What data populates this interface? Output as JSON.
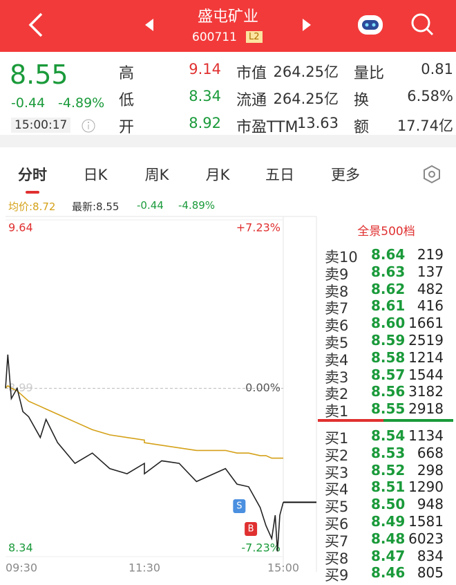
{
  "header": {
    "title": "盛屯矿业",
    "code": "600711",
    "badge": "L2"
  },
  "quote": {
    "price": "8.55",
    "change": "-0.44",
    "change_pct": "-4.89%",
    "time": "15:00:17"
  },
  "stats": [
    [
      "高",
      "9.14",
      "市值",
      "264.25亿",
      "量比",
      "0.81"
    ],
    [
      "低",
      "8.34",
      "流通",
      "264.25亿",
      "换",
      "6.58%"
    ],
    [
      "开",
      "8.92",
      "市盈TTM",
      "13.63",
      "额",
      "17.74亿"
    ]
  ],
  "tabs": [
    "分时",
    "日K",
    "周K",
    "月K",
    "五日",
    "更多"
  ],
  "summary": {
    "avg": "均价:8.72",
    "latest": "最新:8.55",
    "change": "-0.44",
    "change_pct": "-4.89%"
  },
  "chart": {
    "type": "line",
    "x": [
      "09:30",
      "09:32",
      "09:35",
      "09:40",
      "09:45",
      "09:50",
      "10:00",
      "10:05",
      "10:15",
      "10:30",
      "10:45",
      "11:00",
      "11:15",
      "11:30",
      "13:00",
      "13:15",
      "13:30",
      "13:45",
      "14:00",
      "14:10",
      "14:20",
      "14:30",
      "14:40",
      "14:45",
      "14:50",
      "14:53",
      "14:55",
      "14:57",
      "15:00"
    ],
    "series": [
      {
        "color": "#222222",
        "values": [
          8.99,
          9.12,
          8.95,
          8.99,
          8.9,
          8.88,
          8.8,
          8.87,
          8.78,
          8.7,
          8.74,
          8.68,
          8.66,
          8.7,
          8.66,
          8.71,
          8.7,
          8.63,
          8.66,
          8.68,
          8.62,
          8.61,
          8.53,
          8.46,
          8.41,
          8.5,
          8.36,
          8.5,
          8.55
        ]
      },
      {
        "color": "#d4a017",
        "values": [
          8.99,
          9.0,
          8.99,
          8.98,
          8.96,
          8.94,
          8.92,
          8.91,
          8.89,
          8.86,
          8.83,
          8.81,
          8.8,
          8.79,
          8.78,
          8.77,
          8.76,
          8.75,
          8.75,
          8.75,
          8.74,
          8.74,
          8.73,
          8.73,
          8.72,
          8.72,
          8.72,
          8.72,
          8.72
        ]
      }
    ],
    "ylim": [
      8.34,
      9.64
    ],
    "yticks": [
      8.34,
      8.99,
      9.64
    ],
    "pct_ticks": [
      {
        "value": 9.64,
        "label": "+7.23%"
      },
      {
        "value": 8.99,
        "label": "0.00%"
      },
      {
        "value": 8.34,
        "label": "-7.23%"
      }
    ],
    "xticks": [
      "09:30",
      "11:30",
      "15:00"
    ],
    "signals": [
      {
        "label": "S",
        "time": "14:22"
      },
      {
        "label": "B",
        "time": "14:32"
      }
    ]
  },
  "order_book": {
    "title": "全景500档",
    "asks": [
      [
        "卖10",
        "8.64",
        "219"
      ],
      [
        "卖9",
        "8.63",
        "137"
      ],
      [
        "卖8",
        "8.62",
        "482"
      ],
      [
        "卖7",
        "8.61",
        "416"
      ],
      [
        "卖6",
        "8.60",
        "1661"
      ],
      [
        "卖5",
        "8.59",
        "2519"
      ],
      [
        "卖4",
        "8.58",
        "1214"
      ],
      [
        "卖3",
        "8.57",
        "1544"
      ],
      [
        "卖2",
        "8.56",
        "3182"
      ],
      [
        "卖1",
        "8.55",
        "2918"
      ]
    ],
    "bids": [
      [
        "买1",
        "8.54",
        "1134"
      ],
      [
        "买2",
        "8.53",
        "668"
      ],
      [
        "买3",
        "8.52",
        "298"
      ],
      [
        "买4",
        "8.51",
        "1290"
      ],
      [
        "买5",
        "8.50",
        "948"
      ],
      [
        "买6",
        "8.49",
        "1581"
      ],
      [
        "买7",
        "8.48",
        "6023"
      ],
      [
        "买8",
        "8.47",
        "834"
      ],
      [
        "买9",
        "8.46",
        "805"
      ]
    ]
  }
}
